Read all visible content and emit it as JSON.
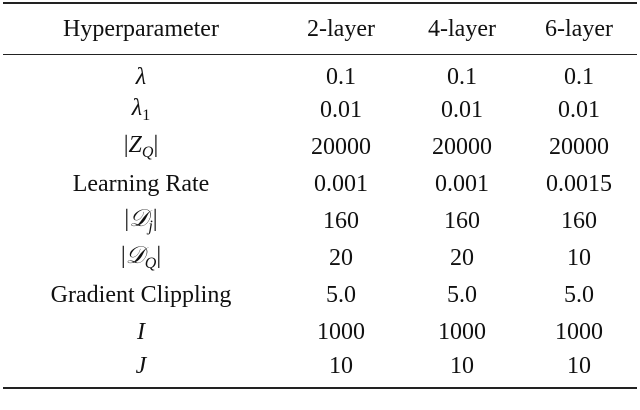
{
  "table": {
    "header": [
      "Hyperparameter",
      "2-layer",
      "4-layer",
      "6-layer"
    ],
    "rows": [
      [
        {
          "symbol": "λ"
        },
        "0.1",
        "0.1",
        "0.1"
      ],
      [
        {
          "symbol": "λ",
          "sub": "1"
        },
        "0.01",
        "0.01",
        "0.01"
      ],
      [
        {
          "open": "|",
          "symbol": "Z",
          "sub": "Q",
          "close": "|"
        },
        "20000",
        "20000",
        "20000"
      ],
      [
        "Learning Rate",
        "0.001",
        "0.001",
        "0.0015"
      ],
      [
        {
          "open": "|",
          "symbol": "𝒟",
          "sub": "j",
          "close": "|"
        },
        "160",
        "160",
        "160"
      ],
      [
        {
          "open": "|",
          "symbol": "𝒟",
          "sub": "Q",
          "close": "|"
        },
        "20",
        "20",
        "10"
      ],
      [
        "Gradient Clippling",
        "5.0",
        "5.0",
        "5.0"
      ],
      [
        {
          "symbol": "I"
        },
        "1000",
        "1000",
        "1000"
      ],
      [
        {
          "symbol": "J"
        },
        "10",
        "10",
        "10"
      ]
    ]
  }
}
